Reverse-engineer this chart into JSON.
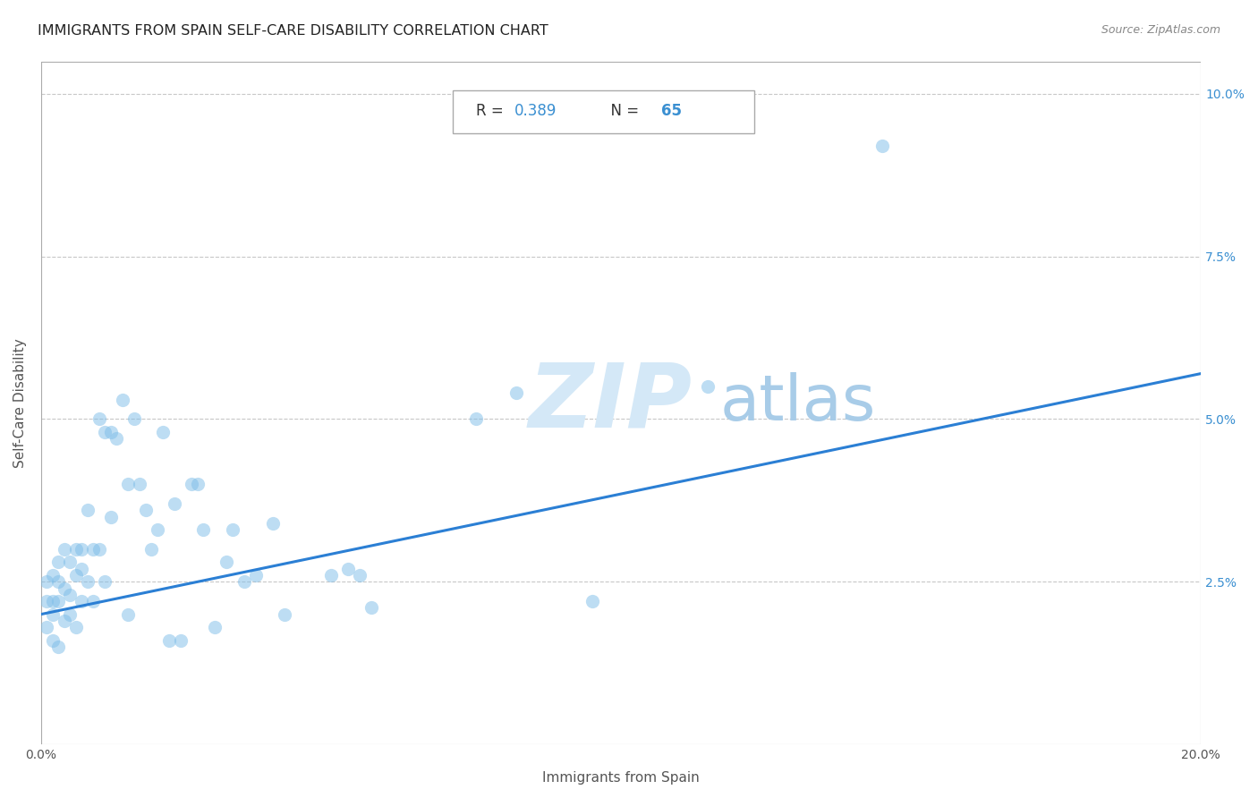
{
  "title": "IMMIGRANTS FROM SPAIN SELF-CARE DISABILITY CORRELATION CHART",
  "source": "Source: ZipAtlas.com",
  "xlabel": "Immigrants from Spain",
  "ylabel": "Self-Care Disability",
  "R": 0.389,
  "N": 65,
  "xlim": [
    0.0,
    0.2
  ],
  "ylim": [
    0.0,
    0.105
  ],
  "xticks": [
    0.0,
    0.05,
    0.1,
    0.15,
    0.2
  ],
  "xticklabels": [
    "0.0%",
    "",
    "",
    "",
    "20.0%"
  ],
  "yticks": [
    0.0,
    0.025,
    0.05,
    0.075,
    0.1
  ],
  "yticklabels": [
    "",
    "2.5%",
    "5.0%",
    "7.5%",
    "10.0%"
  ],
  "scatter_color": "#7dbde8",
  "scatter_alpha": 0.5,
  "scatter_size": 120,
  "line_color": "#2b7fd4",
  "line_width": 2.2,
  "line_x0": 0.0,
  "line_y0": 0.02,
  "line_x1": 0.2,
  "line_y1": 0.057,
  "watermark_zip": "ZIP",
  "watermark_atlas": "atlas",
  "watermark_color_zip": "#d4e8f7",
  "watermark_color_atlas": "#a8cce8",
  "grid_color": "#c8c8c8",
  "grid_style": "--",
  "background_color": "#ffffff",
  "title_color": "#222222",
  "title_fontsize": 11.5,
  "axis_label_color": "#555555",
  "tick_label_color_y": "#3a8fd1",
  "tick_label_color_x": "#555555",
  "R_color": "#3a8fd1",
  "N_color": "#3a8fd1",
  "points_x": [
    0.001,
    0.001,
    0.001,
    0.002,
    0.002,
    0.002,
    0.002,
    0.003,
    0.003,
    0.003,
    0.003,
    0.004,
    0.004,
    0.004,
    0.005,
    0.005,
    0.005,
    0.006,
    0.006,
    0.006,
    0.007,
    0.007,
    0.007,
    0.008,
    0.008,
    0.009,
    0.009,
    0.01,
    0.01,
    0.011,
    0.011,
    0.012,
    0.012,
    0.013,
    0.014,
    0.015,
    0.015,
    0.016,
    0.017,
    0.018,
    0.019,
    0.02,
    0.021,
    0.022,
    0.023,
    0.024,
    0.026,
    0.027,
    0.028,
    0.03,
    0.032,
    0.033,
    0.035,
    0.037,
    0.04,
    0.042,
    0.05,
    0.053,
    0.055,
    0.057,
    0.075,
    0.082,
    0.095,
    0.115,
    0.145
  ],
  "points_y": [
    0.022,
    0.025,
    0.018,
    0.026,
    0.022,
    0.02,
    0.016,
    0.025,
    0.022,
    0.028,
    0.015,
    0.03,
    0.024,
    0.019,
    0.028,
    0.023,
    0.02,
    0.03,
    0.026,
    0.018,
    0.03,
    0.027,
    0.022,
    0.036,
    0.025,
    0.03,
    0.022,
    0.05,
    0.03,
    0.048,
    0.025,
    0.048,
    0.035,
    0.047,
    0.053,
    0.04,
    0.02,
    0.05,
    0.04,
    0.036,
    0.03,
    0.033,
    0.048,
    0.016,
    0.037,
    0.016,
    0.04,
    0.04,
    0.033,
    0.018,
    0.028,
    0.033,
    0.025,
    0.026,
    0.034,
    0.02,
    0.026,
    0.027,
    0.026,
    0.021,
    0.05,
    0.054,
    0.022,
    0.055,
    0.092
  ]
}
